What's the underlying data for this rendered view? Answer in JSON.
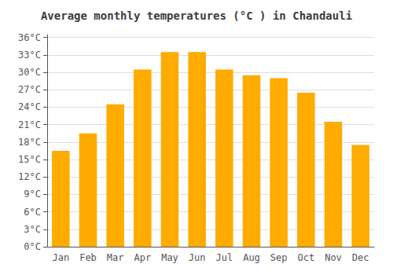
{
  "chart_data": {
    "type": "bar",
    "title": "Average monthly temperatures (°C ) in Chandauli",
    "categories": [
      "Jan",
      "Feb",
      "Mar",
      "Apr",
      "May",
      "Jun",
      "Jul",
      "Aug",
      "Sep",
      "Oct",
      "Nov",
      "Dec"
    ],
    "values": [
      16.5,
      19.5,
      24.5,
      30.5,
      33.5,
      33.5,
      30.5,
      29.5,
      29.0,
      26.5,
      21.5,
      17.5
    ],
    "color": "#FFAB00",
    "ylim": [
      0,
      36.5
    ],
    "yticks": [
      {
        "value": 0,
        "label": "0°C"
      },
      {
        "value": 3,
        "label": "3°C"
      },
      {
        "value": 6,
        "label": "6°C"
      },
      {
        "value": 9,
        "label": "9°C"
      },
      {
        "value": 12,
        "label": "12°C"
      },
      {
        "value": 15,
        "label": "15°C"
      },
      {
        "value": 18,
        "label": "18°C"
      },
      {
        "value": 21,
        "label": "21°C"
      },
      {
        "value": 24,
        "label": "24°C"
      },
      {
        "value": 27,
        "label": "27°C"
      },
      {
        "value": 30,
        "label": "30°C"
      },
      {
        "value": 33,
        "label": "33°C"
      },
      {
        "value": 36,
        "label": "36°C"
      }
    ],
    "grid": true
  }
}
